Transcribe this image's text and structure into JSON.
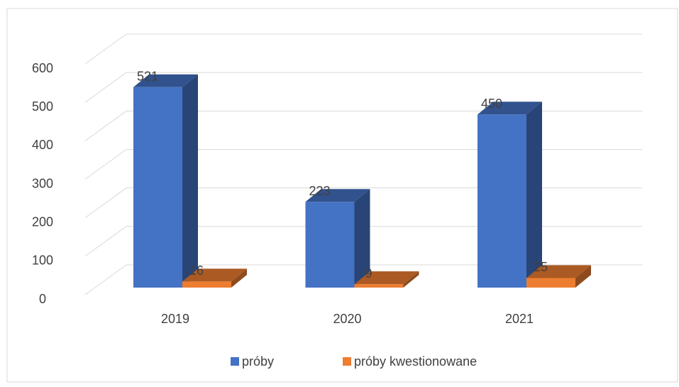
{
  "chart_data": {
    "type": "bar3d",
    "categories": [
      "2019",
      "2020",
      "2021"
    ],
    "series": [
      {
        "name": "próby",
        "color": "#4472c4",
        "values": [
          521,
          223,
          450
        ]
      },
      {
        "name": "próby kwestionowane",
        "color": "#ed7d31",
        "values": [
          16,
          9,
          25
        ]
      }
    ],
    "ylim": [
      0,
      600
    ],
    "yticks": [
      0,
      100,
      200,
      300,
      400,
      500,
      600
    ],
    "grid": true,
    "legend": "bottom"
  }
}
